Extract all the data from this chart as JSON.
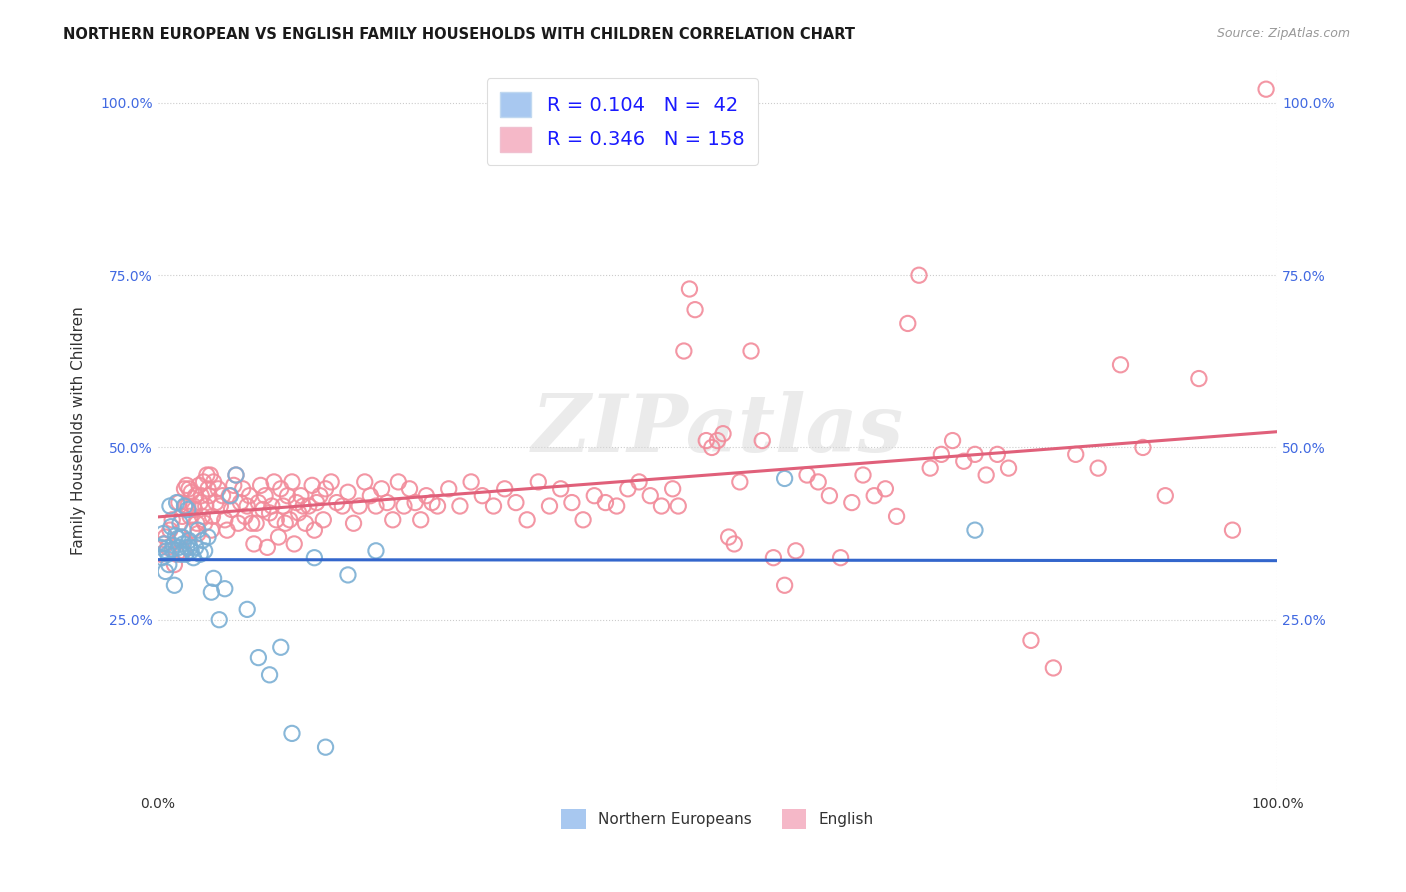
{
  "title": "NORTHERN EUROPEAN VS ENGLISH FAMILY HOUSEHOLDS WITH CHILDREN CORRELATION CHART",
  "source": "Source: ZipAtlas.com",
  "ylabel": "Family Households with Children",
  "xlim": [
    0.0,
    1.0
  ],
  "ylim": [
    0.0,
    1.05
  ],
  "blue_color": "#7bafd4",
  "pink_color": "#f28b9a",
  "blue_line_color": "#3366cc",
  "pink_line_color": "#e0607a",
  "blue_legend_color": "#a8c8f0",
  "pink_legend_color": "#f5b8c8",
  "watermark": "ZIPatlas",
  "background_color": "#ffffff",
  "grid_color": "#cccccc",
  "blue_scatter": [
    [
      0.003,
      0.355
    ],
    [
      0.004,
      0.34
    ],
    [
      0.005,
      0.375
    ],
    [
      0.006,
      0.36
    ],
    [
      0.007,
      0.32
    ],
    [
      0.008,
      0.35
    ],
    [
      0.009,
      0.345
    ],
    [
      0.01,
      0.33
    ],
    [
      0.011,
      0.415
    ],
    [
      0.012,
      0.385
    ],
    [
      0.013,
      0.352
    ],
    [
      0.014,
      0.358
    ],
    [
      0.015,
      0.3
    ],
    [
      0.016,
      0.372
    ],
    [
      0.017,
      0.42
    ],
    [
      0.018,
      0.368
    ],
    [
      0.019,
      0.355
    ],
    [
      0.02,
      0.39
    ],
    [
      0.021,
      0.345
    ],
    [
      0.022,
      0.37
    ],
    [
      0.023,
      0.36
    ],
    [
      0.024,
      0.415
    ],
    [
      0.025,
      0.345
    ],
    [
      0.026,
      0.355
    ],
    [
      0.027,
      0.41
    ],
    [
      0.028,
      0.365
    ],
    [
      0.029,
      0.355
    ],
    [
      0.03,
      0.35
    ],
    [
      0.032,
      0.34
    ],
    [
      0.034,
      0.355
    ],
    [
      0.036,
      0.38
    ],
    [
      0.038,
      0.345
    ],
    [
      0.04,
      0.365
    ],
    [
      0.042,
      0.35
    ],
    [
      0.045,
      0.37
    ],
    [
      0.048,
      0.29
    ],
    [
      0.05,
      0.31
    ],
    [
      0.055,
      0.25
    ],
    [
      0.06,
      0.295
    ],
    [
      0.065,
      0.43
    ],
    [
      0.07,
      0.46
    ],
    [
      0.08,
      0.265
    ],
    [
      0.09,
      0.195
    ],
    [
      0.1,
      0.17
    ],
    [
      0.11,
      0.21
    ],
    [
      0.12,
      0.085
    ],
    [
      0.14,
      0.34
    ],
    [
      0.15,
      0.065
    ],
    [
      0.17,
      0.315
    ],
    [
      0.195,
      0.35
    ],
    [
      0.56,
      0.455
    ],
    [
      0.73,
      0.38
    ]
  ],
  "pink_scatter": [
    [
      0.003,
      0.345
    ],
    [
      0.005,
      0.36
    ],
    [
      0.007,
      0.37
    ],
    [
      0.009,
      0.355
    ],
    [
      0.011,
      0.38
    ],
    [
      0.013,
      0.395
    ],
    [
      0.015,
      0.33
    ],
    [
      0.017,
      0.345
    ],
    [
      0.019,
      0.42
    ],
    [
      0.021,
      0.37
    ],
    [
      0.022,
      0.4
    ],
    [
      0.023,
      0.35
    ],
    [
      0.024,
      0.44
    ],
    [
      0.025,
      0.415
    ],
    [
      0.026,
      0.445
    ],
    [
      0.027,
      0.415
    ],
    [
      0.028,
      0.44
    ],
    [
      0.029,
      0.4
    ],
    [
      0.03,
      0.435
    ],
    [
      0.031,
      0.38
    ],
    [
      0.032,
      0.415
    ],
    [
      0.033,
      0.41
    ],
    [
      0.034,
      0.43
    ],
    [
      0.035,
      0.39
    ],
    [
      0.036,
      0.375
    ],
    [
      0.037,
      0.445
    ],
    [
      0.038,
      0.42
    ],
    [
      0.039,
      0.43
    ],
    [
      0.04,
      0.4
    ],
    [
      0.041,
      0.45
    ],
    [
      0.042,
      0.39
    ],
    [
      0.043,
      0.415
    ],
    [
      0.044,
      0.46
    ],
    [
      0.045,
      0.44
    ],
    [
      0.046,
      0.43
    ],
    [
      0.047,
      0.46
    ],
    [
      0.048,
      0.38
    ],
    [
      0.049,
      0.4
    ],
    [
      0.05,
      0.45
    ],
    [
      0.052,
      0.42
    ],
    [
      0.054,
      0.44
    ],
    [
      0.056,
      0.415
    ],
    [
      0.058,
      0.43
    ],
    [
      0.06,
      0.395
    ],
    [
      0.062,
      0.38
    ],
    [
      0.064,
      0.43
    ],
    [
      0.066,
      0.41
    ],
    [
      0.068,
      0.445
    ],
    [
      0.07,
      0.46
    ],
    [
      0.072,
      0.39
    ],
    [
      0.074,
      0.42
    ],
    [
      0.076,
      0.44
    ],
    [
      0.078,
      0.4
    ],
    [
      0.08,
      0.415
    ],
    [
      0.082,
      0.43
    ],
    [
      0.084,
      0.39
    ],
    [
      0.086,
      0.36
    ],
    [
      0.088,
      0.39
    ],
    [
      0.09,
      0.42
    ],
    [
      0.092,
      0.445
    ],
    [
      0.094,
      0.41
    ],
    [
      0.096,
      0.43
    ],
    [
      0.098,
      0.355
    ],
    [
      0.1,
      0.405
    ],
    [
      0.102,
      0.415
    ],
    [
      0.104,
      0.45
    ],
    [
      0.106,
      0.395
    ],
    [
      0.108,
      0.37
    ],
    [
      0.11,
      0.44
    ],
    [
      0.112,
      0.415
    ],
    [
      0.114,
      0.39
    ],
    [
      0.116,
      0.43
    ],
    [
      0.118,
      0.395
    ],
    [
      0.12,
      0.45
    ],
    [
      0.122,
      0.36
    ],
    [
      0.124,
      0.42
    ],
    [
      0.126,
      0.405
    ],
    [
      0.128,
      0.43
    ],
    [
      0.13,
      0.415
    ],
    [
      0.132,
      0.39
    ],
    [
      0.135,
      0.415
    ],
    [
      0.138,
      0.445
    ],
    [
      0.14,
      0.38
    ],
    [
      0.142,
      0.42
    ],
    [
      0.145,
      0.43
    ],
    [
      0.148,
      0.395
    ],
    [
      0.15,
      0.44
    ],
    [
      0.155,
      0.45
    ],
    [
      0.16,
      0.42
    ],
    [
      0.165,
      0.415
    ],
    [
      0.17,
      0.435
    ],
    [
      0.175,
      0.39
    ],
    [
      0.18,
      0.415
    ],
    [
      0.185,
      0.45
    ],
    [
      0.19,
      0.43
    ],
    [
      0.195,
      0.415
    ],
    [
      0.2,
      0.44
    ],
    [
      0.205,
      0.42
    ],
    [
      0.21,
      0.395
    ],
    [
      0.215,
      0.45
    ],
    [
      0.22,
      0.415
    ],
    [
      0.225,
      0.44
    ],
    [
      0.23,
      0.42
    ],
    [
      0.235,
      0.395
    ],
    [
      0.24,
      0.43
    ],
    [
      0.245,
      0.42
    ],
    [
      0.25,
      0.415
    ],
    [
      0.26,
      0.44
    ],
    [
      0.27,
      0.415
    ],
    [
      0.28,
      0.45
    ],
    [
      0.29,
      0.43
    ],
    [
      0.3,
      0.415
    ],
    [
      0.31,
      0.44
    ],
    [
      0.32,
      0.42
    ],
    [
      0.33,
      0.395
    ],
    [
      0.34,
      0.45
    ],
    [
      0.35,
      0.415
    ],
    [
      0.36,
      0.44
    ],
    [
      0.37,
      0.42
    ],
    [
      0.38,
      0.395
    ],
    [
      0.39,
      0.43
    ],
    [
      0.4,
      0.42
    ],
    [
      0.41,
      0.415
    ],
    [
      0.42,
      0.44
    ],
    [
      0.43,
      0.45
    ],
    [
      0.44,
      0.43
    ],
    [
      0.45,
      0.415
    ],
    [
      0.46,
      0.44
    ],
    [
      0.465,
      0.415
    ],
    [
      0.47,
      0.64
    ],
    [
      0.475,
      0.73
    ],
    [
      0.48,
      0.7
    ],
    [
      0.49,
      0.51
    ],
    [
      0.495,
      0.5
    ],
    [
      0.5,
      0.51
    ],
    [
      0.505,
      0.52
    ],
    [
      0.51,
      0.37
    ],
    [
      0.515,
      0.36
    ],
    [
      0.52,
      0.45
    ],
    [
      0.53,
      0.64
    ],
    [
      0.54,
      0.51
    ],
    [
      0.55,
      0.34
    ],
    [
      0.56,
      0.3
    ],
    [
      0.57,
      0.35
    ],
    [
      0.58,
      0.46
    ],
    [
      0.59,
      0.45
    ],
    [
      0.6,
      0.43
    ],
    [
      0.61,
      0.34
    ],
    [
      0.62,
      0.42
    ],
    [
      0.63,
      0.46
    ],
    [
      0.64,
      0.43
    ],
    [
      0.65,
      0.44
    ],
    [
      0.66,
      0.4
    ],
    [
      0.67,
      0.68
    ],
    [
      0.68,
      0.75
    ],
    [
      0.69,
      0.47
    ],
    [
      0.7,
      0.49
    ],
    [
      0.71,
      0.51
    ],
    [
      0.72,
      0.48
    ],
    [
      0.73,
      0.49
    ],
    [
      0.74,
      0.46
    ],
    [
      0.75,
      0.49
    ],
    [
      0.76,
      0.47
    ],
    [
      0.78,
      0.22
    ],
    [
      0.8,
      0.18
    ],
    [
      0.82,
      0.49
    ],
    [
      0.84,
      0.47
    ],
    [
      0.86,
      0.62
    ],
    [
      0.88,
      0.5
    ],
    [
      0.9,
      0.43
    ],
    [
      0.93,
      0.6
    ],
    [
      0.96,
      0.38
    ],
    [
      0.99,
      1.02
    ]
  ]
}
